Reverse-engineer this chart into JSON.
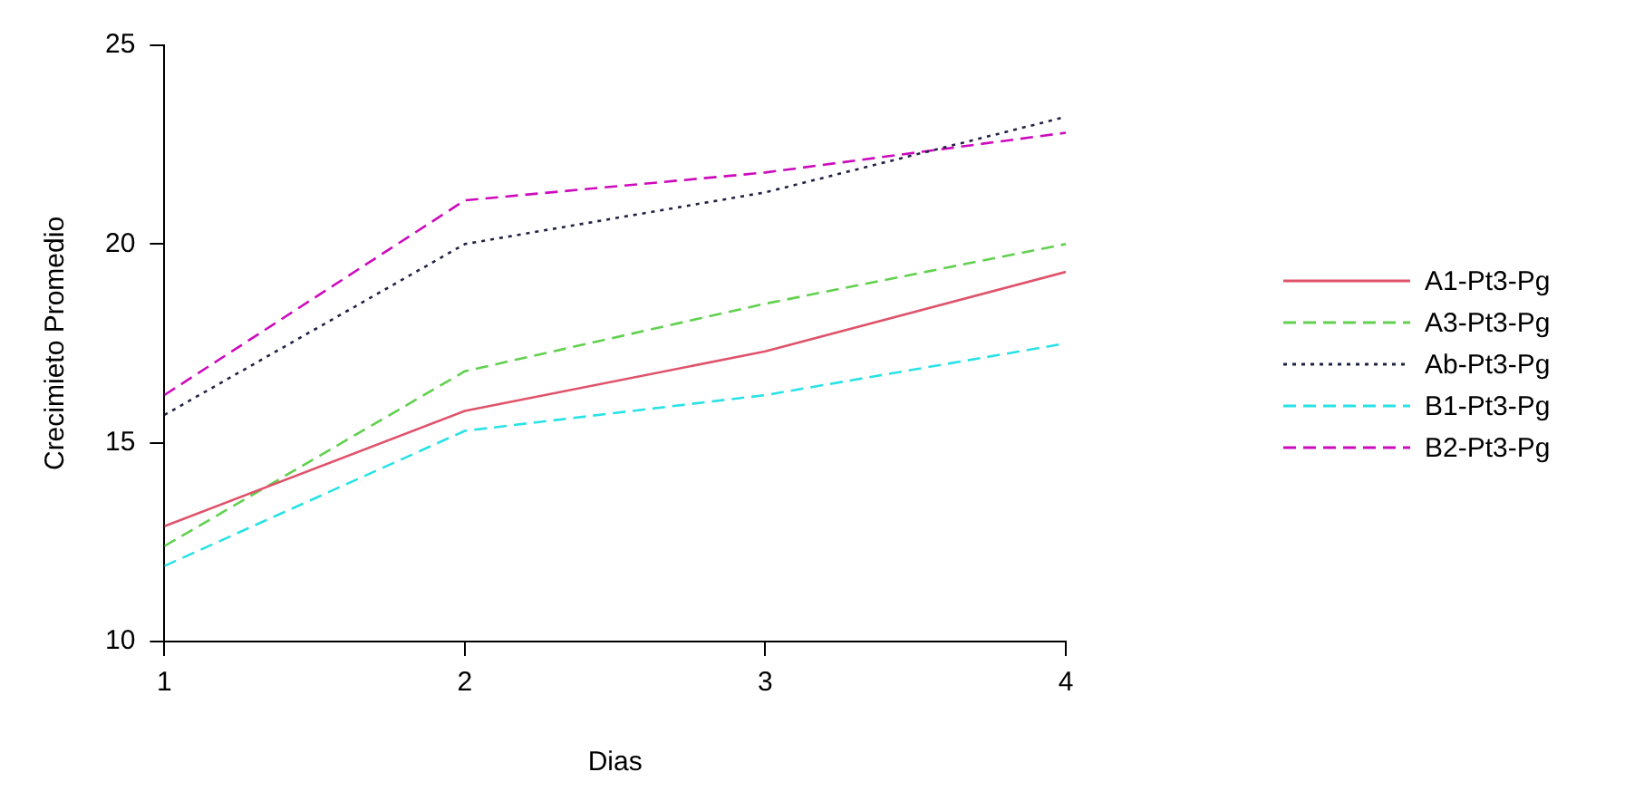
{
  "chart_data": {
    "type": "line",
    "xlabel": "Dias",
    "ylabel": "Crecimieto Promedio",
    "x": [
      1,
      2,
      3,
      4
    ],
    "xlim": [
      1,
      4
    ],
    "xticks": [
      1,
      2,
      3,
      4
    ],
    "ylim": [
      10,
      25
    ],
    "yticks": [
      10,
      15,
      20,
      25
    ],
    "grid": false,
    "legend": "right",
    "marker": "none",
    "series": [
      {
        "name": "A1-Pt3-Pg",
        "color": "#df536b",
        "line_style": "solid",
        "values": [
          12.9,
          15.8,
          17.3,
          19.3
        ]
      },
      {
        "name": "A3-Pt3-Pg",
        "color": "#61d04f",
        "line_style": "dashed",
        "values": [
          12.4,
          16.8,
          18.5,
          20.0
        ]
      },
      {
        "name": "Ab-Pt3-Pg",
        "color": "#222244",
        "line_style": "dotted",
        "values": [
          15.7,
          20.0,
          21.3,
          23.2
        ]
      },
      {
        "name": "B1-Pt3-Pg",
        "color": "#28e2e5",
        "line_style": "dashed",
        "values": [
          11.9,
          15.3,
          16.2,
          17.5
        ]
      },
      {
        "name": "B2-Pt3-Pg",
        "color": "#cd0bbc",
        "line_style": "dashed",
        "values": [
          16.2,
          21.1,
          21.8,
          22.8
        ]
      }
    ]
  }
}
